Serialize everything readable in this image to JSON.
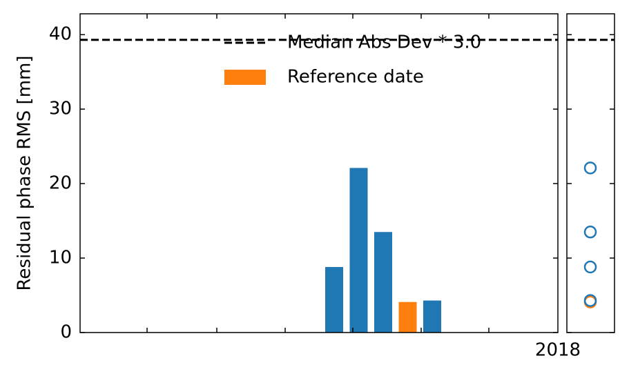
{
  "chart_data": [
    {
      "type": "bar",
      "ylabel": "Residual phase RMS [mm]",
      "categories": [
        null,
        null,
        null,
        null,
        null
      ],
      "values": [
        8.8,
        22.1,
        13.5,
        4.1,
        4.3
      ],
      "colors": [
        "#1f77b4",
        "#1f77b4",
        "#1f77b4",
        "#ff7f0e",
        "#1f77b4"
      ],
      "ylim": [
        0,
        42.8
      ],
      "yticks": [
        0,
        10,
        20,
        30,
        40
      ],
      "x_tick_label": "2018",
      "threshold": {
        "value": 39.3,
        "label": "Median Abs Dev * 3.0",
        "color": "#000000"
      },
      "legend": [
        {
          "name": "Median Abs Dev * 3.0",
          "color": "#000000"
        },
        {
          "name": "Reference date",
          "color": "#ff7f0e"
        }
      ]
    },
    {
      "type": "scatter",
      "values": [
        8.8,
        22.1,
        13.5,
        4.1,
        4.3
      ],
      "colors": [
        "#1f77b4",
        "#1f77b4",
        "#1f77b4",
        "#ff7f0e",
        "#1f77b4"
      ],
      "ylim": [
        0,
        42.8
      ],
      "threshold": {
        "value": 39.3
      }
    }
  ]
}
